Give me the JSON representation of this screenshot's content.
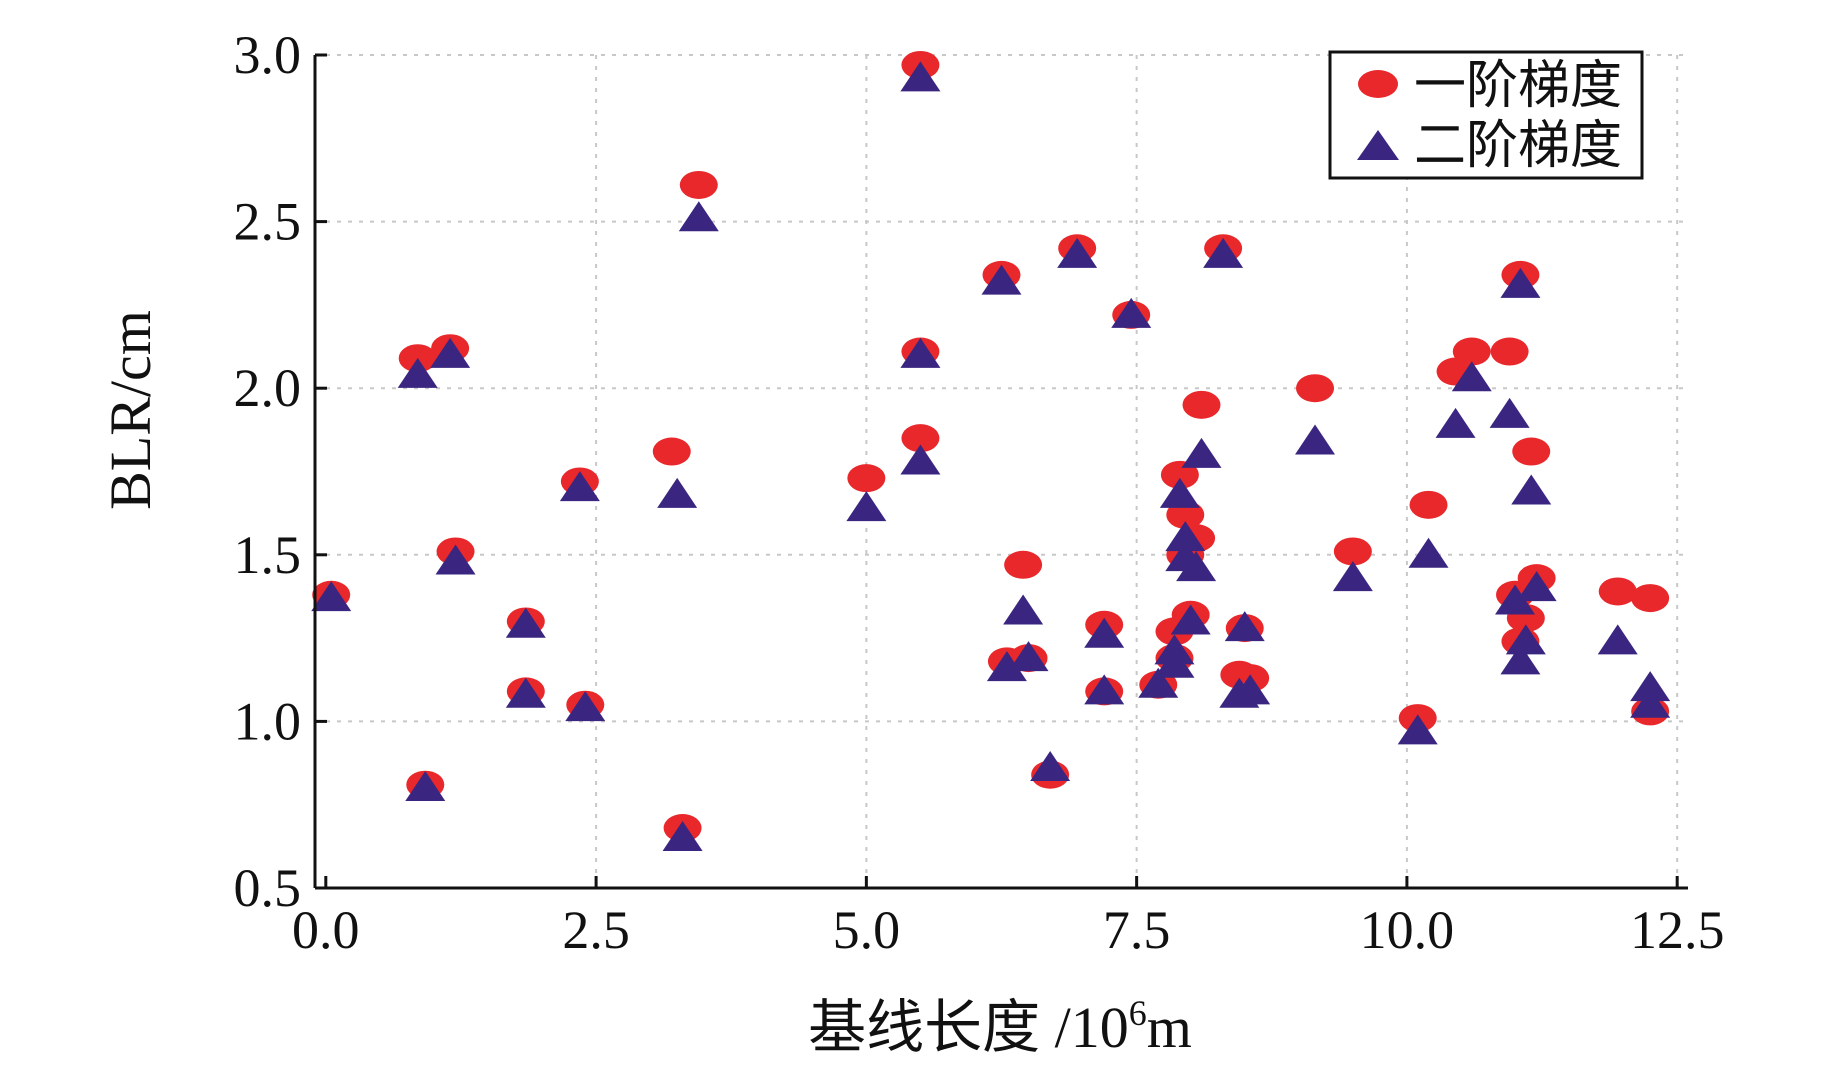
{
  "chart_data": {
    "type": "scatter",
    "title": "",
    "xlabel": "基线长度 /10",
    "xlabel_sup": "6",
    "xlabel_suffix": "m",
    "ylabel": "BLR/cm",
    "xlim": [
      -0.1,
      12.6
    ],
    "ylim": [
      0.5,
      3.0
    ],
    "xticks": [
      0.0,
      2.5,
      5.0,
      7.5,
      10.0,
      12.5
    ],
    "xtick_labels": [
      "0.0",
      "2.5",
      "5.0",
      "7.5",
      "10.0",
      "12.5"
    ],
    "yticks": [
      0.5,
      1.0,
      1.5,
      2.0,
      2.5,
      3.0
    ],
    "ytick_labels": [
      "0.5",
      "1.0",
      "1.5",
      "2.0",
      "2.5",
      "3.0"
    ],
    "grid": true,
    "legend_position": "top-right",
    "colors": {
      "first_order": "#e8282b",
      "second_order": "#3a2680"
    },
    "series": [
      {
        "name": "一阶梯度",
        "marker": "circle",
        "points": [
          [
            0.05,
            1.38
          ],
          [
            0.85,
            2.09
          ],
          [
            0.92,
            0.81
          ],
          [
            1.15,
            2.12
          ],
          [
            1.2,
            1.51
          ],
          [
            1.85,
            1.3
          ],
          [
            1.85,
            1.09
          ],
          [
            2.35,
            1.72
          ],
          [
            2.4,
            1.05
          ],
          [
            3.2,
            1.81
          ],
          [
            3.3,
            0.68
          ],
          [
            3.45,
            2.61
          ],
          [
            5.0,
            1.73
          ],
          [
            5.5,
            2.97
          ],
          [
            5.5,
            2.11
          ],
          [
            5.5,
            1.85
          ],
          [
            6.25,
            2.34
          ],
          [
            6.3,
            1.18
          ],
          [
            6.45,
            1.47
          ],
          [
            6.5,
            1.19
          ],
          [
            6.7,
            0.84
          ],
          [
            6.95,
            2.42
          ],
          [
            7.2,
            1.29
          ],
          [
            7.2,
            1.09
          ],
          [
            7.45,
            2.22
          ],
          [
            7.7,
            1.11
          ],
          [
            7.85,
            1.27
          ],
          [
            7.85,
            1.19
          ],
          [
            7.9,
            1.74
          ],
          [
            7.95,
            1.62
          ],
          [
            7.95,
            1.5
          ],
          [
            8.0,
            1.32
          ],
          [
            8.05,
            1.55
          ],
          [
            8.1,
            1.95
          ],
          [
            8.3,
            2.42
          ],
          [
            8.5,
            1.28
          ],
          [
            8.45,
            1.14
          ],
          [
            8.55,
            1.13
          ],
          [
            9.15,
            2.0
          ],
          [
            9.5,
            1.51
          ],
          [
            10.1,
            1.01
          ],
          [
            10.2,
            1.65
          ],
          [
            10.45,
            2.05
          ],
          [
            10.6,
            2.11
          ],
          [
            10.95,
            2.11
          ],
          [
            11.0,
            1.38
          ],
          [
            11.05,
            2.34
          ],
          [
            11.05,
            1.24
          ],
          [
            11.1,
            1.31
          ],
          [
            11.15,
            1.81
          ],
          [
            11.2,
            1.43
          ],
          [
            11.95,
            1.39
          ],
          [
            12.25,
            1.37
          ],
          [
            12.25,
            1.03
          ]
        ]
      },
      {
        "name": "二阶梯度",
        "marker": "triangle",
        "points": [
          [
            0.05,
            1.37
          ],
          [
            0.85,
            2.04
          ],
          [
            0.92,
            0.8
          ],
          [
            1.15,
            2.1
          ],
          [
            1.2,
            1.48
          ],
          [
            1.85,
            1.29
          ],
          [
            1.85,
            1.08
          ],
          [
            2.35,
            1.7
          ],
          [
            2.4,
            1.04
          ],
          [
            3.25,
            1.68
          ],
          [
            3.3,
            0.65
          ],
          [
            3.45,
            2.51
          ],
          [
            5.0,
            1.64
          ],
          [
            5.5,
            2.93
          ],
          [
            5.5,
            2.1
          ],
          [
            5.5,
            1.78
          ],
          [
            6.25,
            2.32
          ],
          [
            6.3,
            1.16
          ],
          [
            6.45,
            1.33
          ],
          [
            6.5,
            1.19
          ],
          [
            6.7,
            0.86
          ],
          [
            6.95,
            2.4
          ],
          [
            7.2,
            1.26
          ],
          [
            7.2,
            1.09
          ],
          [
            7.45,
            2.22
          ],
          [
            7.7,
            1.11
          ],
          [
            7.85,
            1.17
          ],
          [
            7.85,
            1.21
          ],
          [
            7.9,
            1.68
          ],
          [
            7.95,
            1.55
          ],
          [
            7.95,
            1.49
          ],
          [
            8.0,
            1.3
          ],
          [
            8.05,
            1.46
          ],
          [
            8.1,
            1.8
          ],
          [
            8.3,
            2.4
          ],
          [
            8.5,
            1.28
          ],
          [
            8.45,
            1.08
          ],
          [
            8.55,
            1.09
          ],
          [
            9.15,
            1.84
          ],
          [
            9.5,
            1.43
          ],
          [
            10.1,
            0.97
          ],
          [
            10.2,
            1.5
          ],
          [
            10.45,
            1.89
          ],
          [
            10.6,
            2.03
          ],
          [
            10.95,
            1.92
          ],
          [
            11.0,
            1.36
          ],
          [
            11.05,
            2.31
          ],
          [
            11.05,
            1.18
          ],
          [
            11.1,
            1.24
          ],
          [
            11.15,
            1.69
          ],
          [
            11.2,
            1.4
          ],
          [
            11.95,
            1.24
          ],
          [
            12.25,
            1.1
          ],
          [
            12.25,
            1.05
          ]
        ]
      }
    ]
  }
}
